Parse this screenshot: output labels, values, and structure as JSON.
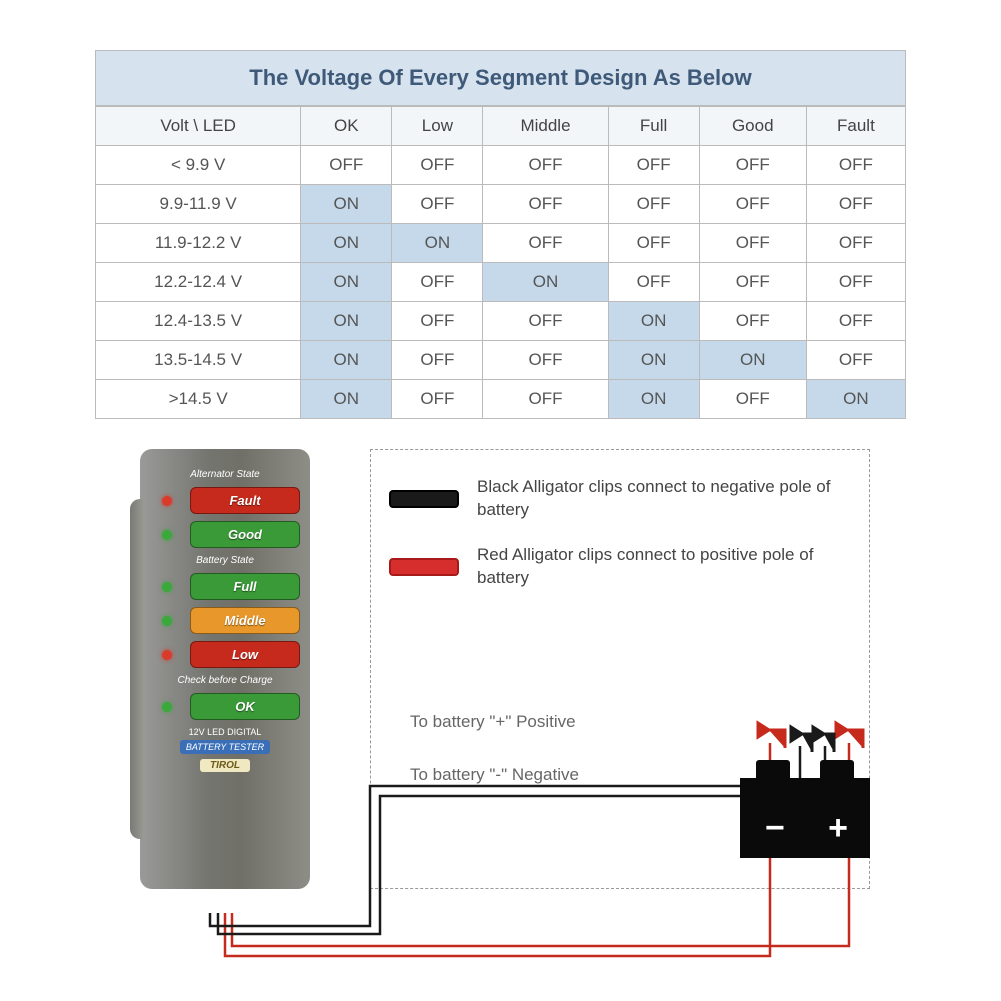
{
  "title": "The Voltage Of Every Segment Design As Below",
  "table": {
    "headers": [
      "Volt \\ LED",
      "OK",
      "Low",
      "Middle",
      "Full",
      "Good",
      "Fault"
    ],
    "rows": [
      {
        "label": "< 9.9 V",
        "cells": [
          {
            "v": "OFF",
            "on": false
          },
          {
            "v": "OFF",
            "on": false
          },
          {
            "v": "OFF",
            "on": false
          },
          {
            "v": "OFF",
            "on": false
          },
          {
            "v": "OFF",
            "on": false
          },
          {
            "v": "OFF",
            "on": false
          }
        ]
      },
      {
        "label": "9.9-11.9 V",
        "cells": [
          {
            "v": "ON",
            "on": true
          },
          {
            "v": "OFF",
            "on": false
          },
          {
            "v": "OFF",
            "on": false
          },
          {
            "v": "OFF",
            "on": false
          },
          {
            "v": "OFF",
            "on": false
          },
          {
            "v": "OFF",
            "on": false
          }
        ]
      },
      {
        "label": "11.9-12.2 V",
        "cells": [
          {
            "v": "ON",
            "on": true
          },
          {
            "v": "ON",
            "on": true
          },
          {
            "v": "OFF",
            "on": false
          },
          {
            "v": "OFF",
            "on": false
          },
          {
            "v": "OFF",
            "on": false
          },
          {
            "v": "OFF",
            "on": false
          }
        ]
      },
      {
        "label": "12.2-12.4 V",
        "cells": [
          {
            "v": "ON",
            "on": true
          },
          {
            "v": "OFF",
            "on": false
          },
          {
            "v": "ON",
            "on": true
          },
          {
            "v": "OFF",
            "on": false
          },
          {
            "v": "OFF",
            "on": false
          },
          {
            "v": "OFF",
            "on": false
          }
        ]
      },
      {
        "label": "12.4-13.5 V",
        "cells": [
          {
            "v": "ON",
            "on": true
          },
          {
            "v": "OFF",
            "on": false
          },
          {
            "v": "OFF",
            "on": false
          },
          {
            "v": "ON",
            "on": true
          },
          {
            "v": "OFF",
            "on": false
          },
          {
            "v": "OFF",
            "on": false
          }
        ]
      },
      {
        "label": "13.5-14.5 V",
        "cells": [
          {
            "v": "ON",
            "on": true
          },
          {
            "v": "OFF",
            "on": false
          },
          {
            "v": "OFF",
            "on": false
          },
          {
            "v": "ON",
            "on": true
          },
          {
            "v": "ON",
            "on": true
          },
          {
            "v": "OFF",
            "on": false
          }
        ]
      },
      {
        "label": ">14.5 V",
        "cells": [
          {
            "v": "ON",
            "on": true
          },
          {
            "v": "OFF",
            "on": false
          },
          {
            "v": "OFF",
            "on": false
          },
          {
            "v": "ON",
            "on": true
          },
          {
            "v": "OFF",
            "on": false
          },
          {
            "v": "ON",
            "on": true
          }
        ]
      }
    ],
    "on_bg": "#c5d9eb",
    "border_color": "#bbbbbb",
    "title_bg": "#d6e3ef",
    "title_color": "#3f5a78"
  },
  "tester": {
    "labels": {
      "alternator": "Alternator State",
      "battery": "Battery State",
      "check": "Check before Charge",
      "digital": "12V LED DIGITAL",
      "blue": "BATTERY TESTER",
      "brand": "TIROL"
    },
    "states": [
      {
        "led": "red",
        "name": "Fault",
        "cls": "fault"
      },
      {
        "led": "green",
        "name": "Good",
        "cls": "good"
      },
      {
        "led": "green",
        "name": "Full",
        "cls": "full"
      },
      {
        "led": "green",
        "name": "Middle",
        "cls": "middle"
      },
      {
        "led": "red",
        "name": "Low",
        "cls": "low"
      },
      {
        "led": "green",
        "name": "OK",
        "cls": "ok"
      }
    ]
  },
  "legend": {
    "black": "Black Alligator clips connect to negative pole of battery",
    "red": "Red Alligator clips connect to positive pole of battery"
  },
  "wiring": {
    "positive_label": "To battery \"+\" Positive",
    "negative_label": "To battery \"-\" Negative",
    "positive_color": "#c62a1c",
    "negative_color": "#1a1a1a"
  },
  "battery": {
    "minus": "−",
    "plus": "+"
  }
}
